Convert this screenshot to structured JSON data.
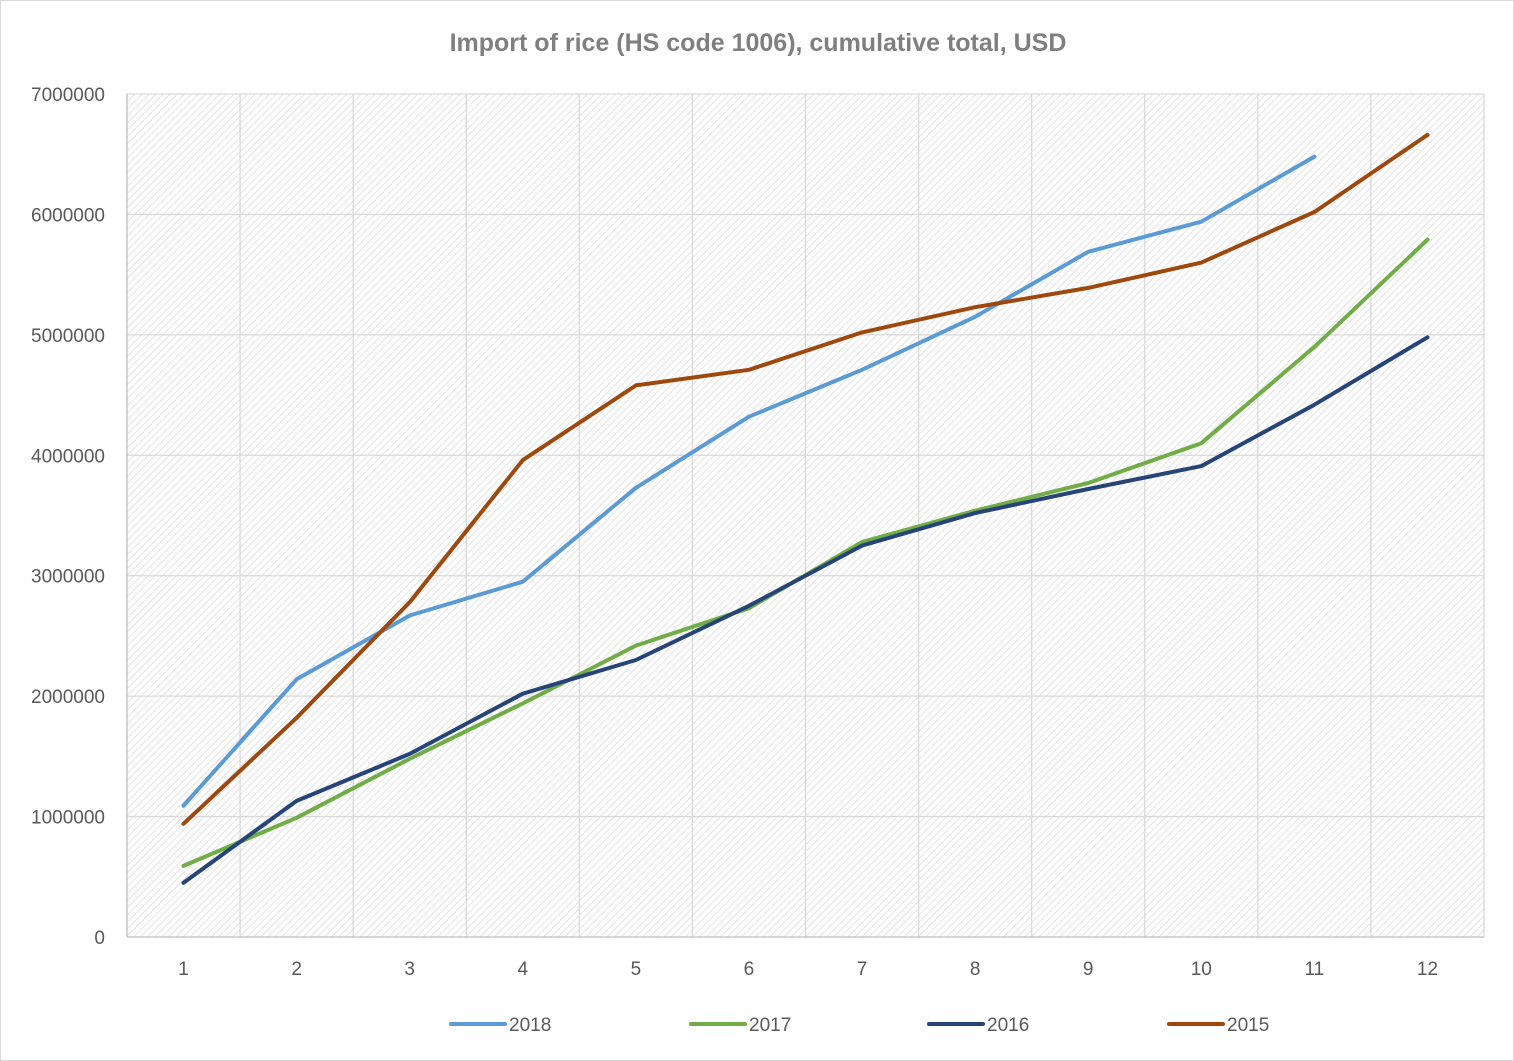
{
  "chart_data": {
    "type": "line",
    "title": "Import of rice (HS code 1006), cumulative total, USD",
    "xlabel": "",
    "ylabel": "",
    "x": [
      1,
      2,
      3,
      4,
      5,
      6,
      7,
      8,
      9,
      10,
      11,
      12
    ],
    "ylim": [
      0,
      7000000
    ],
    "yticks": [
      0,
      1000000,
      2000000,
      3000000,
      4000000,
      5000000,
      6000000,
      7000000
    ],
    "grid": true,
    "legend_position": "bottom",
    "series": [
      {
        "name": "2018",
        "color": "#5b9bd5",
        "values": [
          1090000,
          2140000,
          2670000,
          2950000,
          3730000,
          4320000,
          4710000,
          5150000,
          5690000,
          5940000,
          6480000,
          null
        ]
      },
      {
        "name": "2017",
        "color": "#70ad47",
        "values": [
          590000,
          990000,
          1480000,
          1940000,
          2420000,
          2730000,
          3280000,
          3540000,
          3770000,
          4100000,
          4900000,
          5790000
        ]
      },
      {
        "name": "2016",
        "color": "#264478",
        "values": [
          450000,
          1130000,
          1520000,
          2020000,
          2300000,
          2750000,
          3250000,
          3520000,
          3720000,
          3910000,
          4420000,
          4980000
        ]
      },
      {
        "name": "2015",
        "color": "#9e480e",
        "values": [
          940000,
          1820000,
          2780000,
          3960000,
          4580000,
          4710000,
          5020000,
          5230000,
          5390000,
          5600000,
          6020000,
          6660000
        ]
      }
    ]
  }
}
